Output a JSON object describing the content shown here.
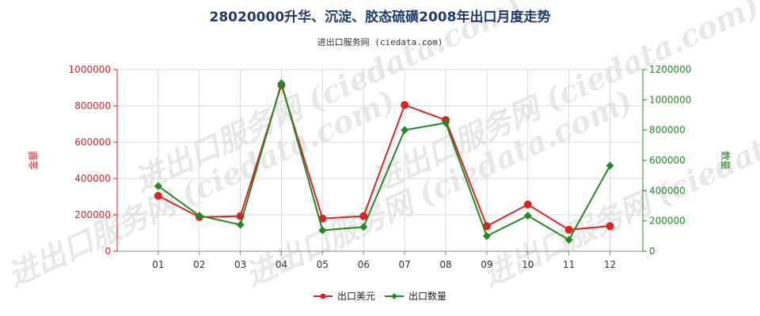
{
  "chart_data": {
    "type": "line",
    "title": "28020000升华、沉淀、胶态硫磺2008年出口月度走势",
    "subtitle": "进出口服务网 (ciedata.com)",
    "categories": [
      "01",
      "02",
      "03",
      "04",
      "05",
      "06",
      "07",
      "08",
      "09",
      "10",
      "11",
      "12"
    ],
    "left_axis": {
      "label": "金额",
      "ylim": [
        0,
        1000000
      ],
      "ticks": [
        "0",
        "200000",
        "400000",
        "600000",
        "800000",
        "1000000"
      ],
      "color": "#dd2222"
    },
    "right_axis": {
      "label": "数量",
      "ylim": [
        0,
        1200000
      ],
      "ticks": [
        "0",
        "200000",
        "400000",
        "600000",
        "800000",
        "1000000",
        "1200000"
      ],
      "color": "#228822"
    },
    "series": [
      {
        "name": "出口美元",
        "axis": "left",
        "color": "#dd2222",
        "values": [
          305000,
          188000,
          193000,
          915000,
          180000,
          193000,
          805000,
          722000,
          138000,
          257000,
          118000,
          138000
        ]
      },
      {
        "name": "出口数量",
        "axis": "right",
        "color": "#228822",
        "values": [
          430000,
          235000,
          175000,
          1110000,
          138000,
          160000,
          800000,
          848000,
          100000,
          235000,
          75000,
          565000
        ]
      }
    ],
    "grid": true,
    "legend": "bottom"
  }
}
